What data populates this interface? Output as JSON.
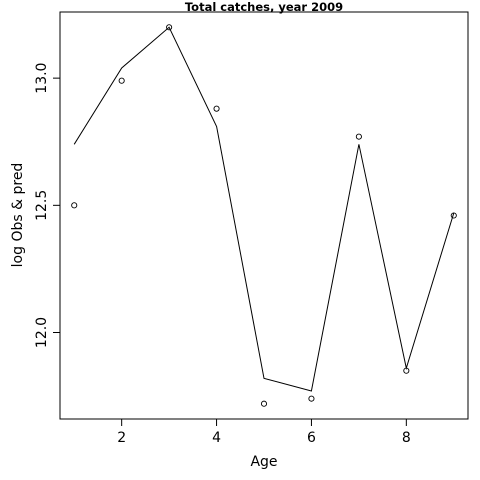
{
  "chart_data": {
    "type": "scatter",
    "title": "Total catches, year 2009",
    "xlabel": "Age",
    "ylabel": "log Obs & pred",
    "xlim": [
      0.7,
      9.3
    ],
    "ylim": [
      11.66,
      13.26
    ],
    "xticks": [
      2,
      4,
      6,
      8
    ],
    "yticks": [
      12.0,
      12.5,
      13.0
    ],
    "xtick_labels": [
      "2",
      "4",
      "6",
      "8"
    ],
    "ytick_labels": [
      "12.0",
      "12.5",
      "13.0"
    ],
    "grid": false,
    "series": [
      {
        "style": "points",
        "x": [
          1,
          2,
          3,
          4,
          5,
          6,
          7,
          8,
          9
        ],
        "y": [
          12.5,
          12.99,
          13.2,
          12.88,
          11.72,
          11.74,
          12.77,
          11.85,
          12.46
        ]
      },
      {
        "style": "line",
        "x": [
          1,
          2,
          3,
          4,
          5,
          6,
          7,
          8,
          9
        ],
        "y": [
          12.74,
          13.04,
          13.2,
          12.81,
          11.82,
          11.77,
          12.74,
          11.86,
          12.47
        ]
      }
    ]
  }
}
